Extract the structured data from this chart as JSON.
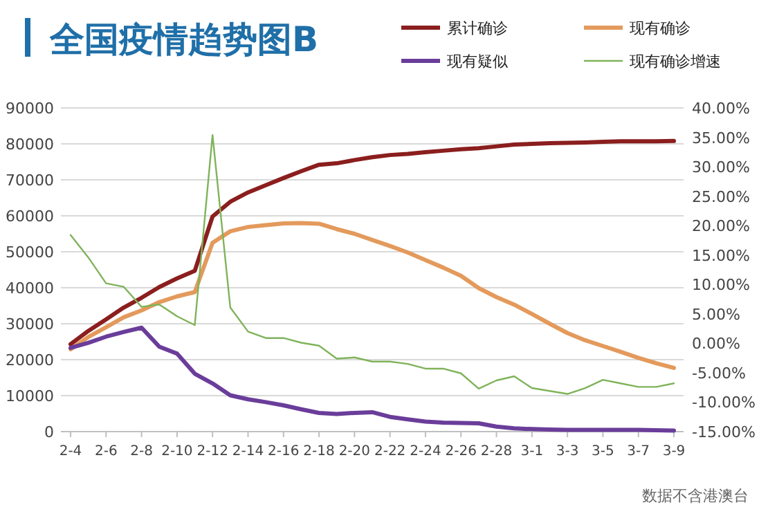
{
  "chart_data": {
    "type": "line",
    "title": "全国疫情趋势图B",
    "categories": [
      "2-4",
      null,
      "2-6",
      null,
      "2-8",
      null,
      "2-10",
      null,
      "2-12",
      null,
      "2-14",
      null,
      "2-16",
      null,
      "2-18",
      null,
      "2-20",
      null,
      "2-22",
      null,
      "2-24",
      null,
      "2-26",
      null,
      "2-28",
      null,
      "3-1",
      null,
      "3-3",
      null,
      "3-5",
      null,
      "3-7",
      null,
      "3-9"
    ],
    "series": [
      {
        "name": "累计确诊",
        "color": "#8b1e1e",
        "values": [
          24300,
          28000,
          31200,
          34500,
          37200,
          40200,
          42600,
          44700,
          59800,
          63900,
          66500,
          68500,
          70500,
          72400,
          74200,
          74600,
          75500,
          76300,
          76900,
          77200,
          77700,
          78100,
          78500,
          78800,
          79300,
          79800,
          80000,
          80200,
          80300,
          80400,
          80600,
          80700,
          80700,
          80700,
          80800
        ]
      },
      {
        "name": "现有确诊",
        "color": "#e39a5c",
        "values": [
          22900,
          26300,
          29000,
          31800,
          33700,
          36000,
          37600,
          38800,
          52500,
          55700,
          56900,
          57400,
          57900,
          58000,
          57800,
          56300,
          55000,
          53300,
          51600,
          49800,
          47700,
          45600,
          43300,
          39900,
          37400,
          35300,
          32700,
          30000,
          27400,
          25400,
          23800,
          22200,
          20500,
          19000,
          17700
        ]
      },
      {
        "name": "现有疑似",
        "color": "#6a3d9a",
        "values": [
          23300,
          24700,
          26400,
          27700,
          28900,
          23600,
          21700,
          16100,
          13400,
          10100,
          9000,
          8200,
          7300,
          6200,
          5200,
          4900,
          5200,
          5400,
          4100,
          3400,
          2800,
          2500,
          2400,
          2300,
          1400,
          900,
          700,
          600,
          500,
          500,
          500,
          500,
          500,
          400,
          300
        ]
      },
      {
        "name": "现有确诊增速",
        "color": "#7fb35a",
        "axis": "y2",
        "values": [
          18.4,
          14.6,
          10.2,
          9.6,
          6.2,
          6.6,
          4.6,
          3.1,
          35.4,
          6.1,
          2.0,
          0.9,
          0.9,
          0.1,
          -0.4,
          -2.6,
          -2.4,
          -3.1,
          -3.1,
          -3.5,
          -4.3,
          -4.3,
          -5.1,
          -7.7,
          -6.3,
          -5.6,
          -7.6,
          -8.1,
          -8.6,
          -7.6,
          -6.2,
          -6.8,
          -7.4,
          -7.4,
          -6.8
        ]
      }
    ],
    "ylim": [
      0,
      90000
    ],
    "yticks": [
      0,
      10000,
      20000,
      30000,
      40000,
      50000,
      60000,
      70000,
      80000,
      90000
    ],
    "y2lim": [
      -15,
      40
    ],
    "y2ticks": [
      {
        "value": -15,
        "label": "-15.00%"
      },
      {
        "value": -10,
        "label": "-10.00%"
      },
      {
        "value": -5,
        "label": "-5.00%"
      },
      {
        "value": 0,
        "label": "0.00%"
      },
      {
        "value": 5,
        "label": "5.00%"
      },
      {
        "value": 10,
        "label": "10.00%"
      },
      {
        "value": 15,
        "label": "15.00%"
      },
      {
        "value": 20,
        "label": "20.00%"
      },
      {
        "value": 25,
        "label": "25.00%"
      },
      {
        "value": 30,
        "label": "30.00%"
      },
      {
        "value": 35,
        "label": "35.00%"
      },
      {
        "value": 40,
        "label": "40.00%"
      }
    ],
    "grid": "y",
    "legend": "top right",
    "annotations": [
      "数据不含港澳台"
    ]
  }
}
